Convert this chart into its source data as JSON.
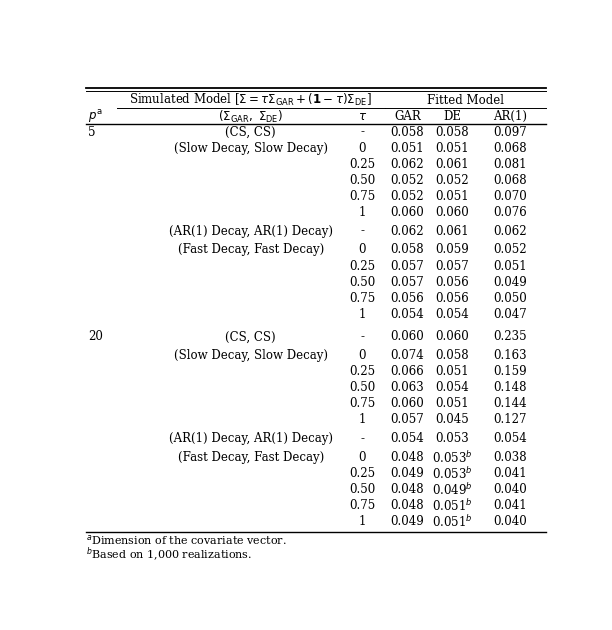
{
  "rows": [
    [
      "5",
      "(CS, CS)",
      "-",
      "0.058",
      "0.058",
      "0.097"
    ],
    [
      "",
      "(Slow Decay, Slow Decay)",
      "0",
      "0.051",
      "0.051",
      "0.068"
    ],
    [
      "",
      "",
      "0.25",
      "0.062",
      "0.061",
      "0.081"
    ],
    [
      "",
      "",
      "0.50",
      "0.052",
      "0.052",
      "0.068"
    ],
    [
      "",
      "",
      "0.75",
      "0.052",
      "0.051",
      "0.070"
    ],
    [
      "",
      "",
      "1",
      "0.060",
      "0.060",
      "0.076"
    ],
    [
      "",
      "(AR(1) Decay, AR(1) Decay)",
      "-",
      "0.062",
      "0.061",
      "0.062"
    ],
    [
      "",
      "(Fast Decay, Fast Decay)",
      "0",
      "0.058",
      "0.059",
      "0.052"
    ],
    [
      "",
      "",
      "0.25",
      "0.057",
      "0.057",
      "0.051"
    ],
    [
      "",
      "",
      "0.50",
      "0.057",
      "0.056",
      "0.049"
    ],
    [
      "",
      "",
      "0.75",
      "0.056",
      "0.056",
      "0.050"
    ],
    [
      "",
      "",
      "1",
      "0.054",
      "0.054",
      "0.047"
    ],
    [
      "20",
      "(CS, CS)",
      "-",
      "0.060",
      "0.060",
      "0.235"
    ],
    [
      "",
      "(Slow Decay, Slow Decay)",
      "0",
      "0.074",
      "0.058",
      "0.163"
    ],
    [
      "",
      "",
      "0.25",
      "0.066",
      "0.051",
      "0.159"
    ],
    [
      "",
      "",
      "0.50",
      "0.063",
      "0.054",
      "0.148"
    ],
    [
      "",
      "",
      "0.75",
      "0.060",
      "0.051",
      "0.144"
    ],
    [
      "",
      "",
      "1",
      "0.057",
      "0.045",
      "0.127"
    ],
    [
      "",
      "(AR(1) Decay, AR(1) Decay)",
      "-",
      "0.054",
      "0.053",
      "0.054"
    ],
    [
      "",
      "(Fast Decay, Fast Decay)",
      "0",
      "0.048",
      "0.053^b",
      "0.038"
    ],
    [
      "",
      "",
      "0.25",
      "0.049",
      "0.053^b",
      "0.041"
    ],
    [
      "",
      "",
      "0.50",
      "0.048",
      "0.049^b",
      "0.040"
    ],
    [
      "",
      "",
      "0.75",
      "0.048",
      "0.051^b",
      "0.041"
    ],
    [
      "",
      "",
      "1",
      "0.049",
      "0.051^b",
      "0.040"
    ]
  ],
  "extra_space_before": {
    "6": 0.006,
    "7": 0.006,
    "12": 0.014,
    "13": 0.006,
    "18": 0.006,
    "19": 0.006
  },
  "background_color": "#ffffff",
  "font_size": 8.5,
  "lw_thick": 1.3,
  "lw_thin": 0.7,
  "lw_single": 1.0
}
